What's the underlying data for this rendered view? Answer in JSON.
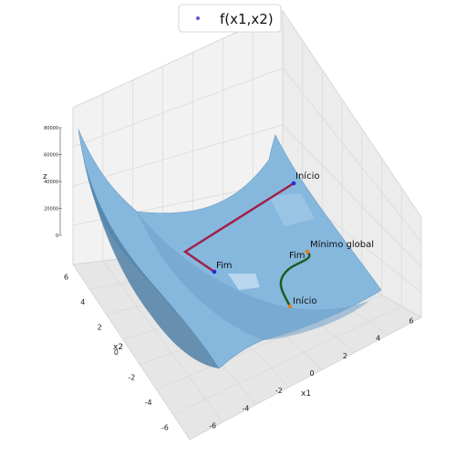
{
  "chart_data": {
    "type": "surface",
    "legend": {
      "label": "f(x1,x2)",
      "marker_color": "#5b5bdb",
      "placement": "top-center"
    },
    "axes": {
      "x": {
        "label": "x1",
        "ticks": [
          "-6",
          "-4",
          "-2",
          "0",
          "2",
          "4",
          "6"
        ],
        "range": [
          -7,
          7
        ]
      },
      "y": {
        "label": "x2",
        "ticks": [
          "-6",
          "-4",
          "-2",
          "0",
          "2",
          "4",
          "6"
        ],
        "range": [
          -7,
          7
        ]
      },
      "z": {
        "label": "z",
        "ticks": [
          "0",
          "20000",
          "40000",
          "60000",
          "80000"
        ],
        "range": [
          0,
          80000
        ]
      }
    },
    "grid": true,
    "surface_color": "#86b8de",
    "paths": [
      {
        "name": "path-1",
        "color": "#a0204a",
        "start_label": "Início",
        "end_label": "Fim"
      },
      {
        "name": "path-2",
        "color": "#1b5e20",
        "start_label": "Início",
        "end_label": "Fim"
      }
    ],
    "annotations": [
      {
        "name": "global-minimum",
        "text": "Mínimo global"
      }
    ]
  }
}
